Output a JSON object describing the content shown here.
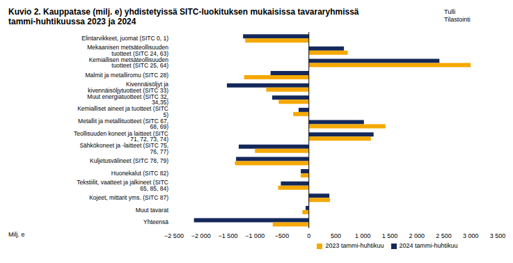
{
  "chart_data": {
    "type": "bar",
    "orientation": "horizontal",
    "title": "Kuvio 2. Kauppatase (milj. e) yhdistetyissä SITC-luokituksen mukaisissa tavararyhmissä tammi-huhtikuussa 2023 ja 2024",
    "source": [
      "Tulli",
      "Tilastointi"
    ],
    "x_label": "Milj. e",
    "categories": [
      "Elintarvikkeet, juomat (SITC 0, 1)",
      "Mekaanisen metsäteollisuuden tuotteet (SITC 24, 63)",
      "Kemiallisen metsäteollisuuden tuotteet (SITC 25, 64)",
      "Malmit ja metalliromu (SITC 28)",
      "Kivennäisöljyt ja kivennäisöljytuotteet (SITC 33)",
      "Muut energiatuotteet (SITC 32, 34,35)",
      "Kemialliset aineet ja tuotteet (SITC 5)",
      "Metallit ja metallituotteet (SITC 67, 68, 69)",
      "Teollisuuden koneet ja laitteet (SITC 71, 72, 73, 74)",
      "Sähkökoneet ja -laitteet (SITC 75, 76, 77)",
      "Kuljetusvälineet (SITC 78, 79)",
      "Huonekalut (SITC 82)",
      "Tekstiilit, vaatteet ja jalkineet (SITC 65, 85, 84)",
      "Kojeet, mittarit yms. (SITC 87)",
      "Muut tavarat",
      "Yhteensä"
    ],
    "series": [
      {
        "name": "2024 tammi-huhtikuu",
        "color": "#14285a",
        "values": [
          -1220,
          650,
          2420,
          -710,
          -1520,
          -680,
          -190,
          1020,
          1200,
          -1300,
          -1350,
          -150,
          -520,
          380,
          -60,
          -2130
        ]
      },
      {
        "name": "2023 tammi-huhtikuu",
        "color": "#f5a800",
        "values": [
          -1180,
          720,
          3000,
          -1200,
          -790,
          -560,
          -290,
          1420,
          1150,
          -1000,
          -1370,
          -150,
          -570,
          390,
          -120,
          -670
        ]
      }
    ],
    "xlim": [
      -2500,
      3500
    ],
    "xticks": [
      {
        "value": -2500,
        "label": "−2 500"
      },
      {
        "value": -2000,
        "label": "−2 000"
      },
      {
        "value": -1500,
        "label": "−1 500"
      },
      {
        "value": -1000,
        "label": "−1 000"
      },
      {
        "value": -500,
        "label": "−500"
      },
      0,
      500,
      {
        "value": 1000,
        "label": "1 000"
      },
      {
        "value": 1500,
        "label": "1 500"
      },
      {
        "value": 2000,
        "label": "2 000"
      },
      {
        "value": 2500,
        "label": "2 500"
      },
      {
        "value": 3000,
        "label": "3 000"
      },
      {
        "value": 3500,
        "label": "3 500"
      }
    ],
    "grid": false,
    "legend": "bottom"
  }
}
